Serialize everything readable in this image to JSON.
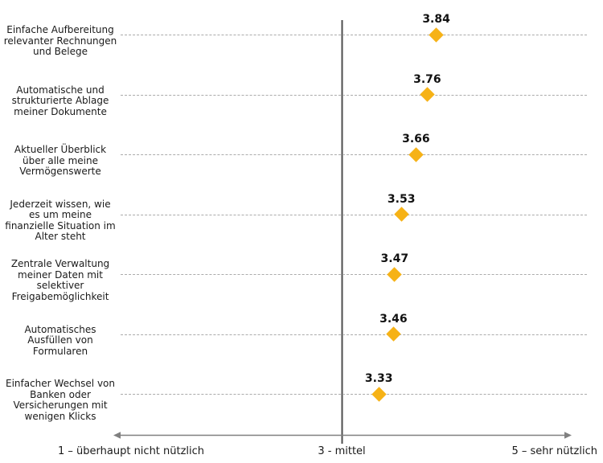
{
  "chart_data": {
    "type": "scatter",
    "subtype": "dot-plot-horizontal",
    "title": "",
    "categories": [
      "Einfache Aufbereitung\nrelevanter Rechnungen\nund Belege",
      "Automatische und\nstrukturierte Ablage\nmeiner Dokumente",
      "Aktueller Überblick\nüber alle meine\nVermögenswerte",
      "Jederzeit wissen, wie\nes um meine\nfinanzielle Situation im\nAlter steht",
      "Zentrale Verwaltung\nmeiner Daten mit\nselektiver\nFreigabemöglichkeit",
      "Automatisches\nAusfüllen von\nFormularen",
      "Einfacher Wechsel von\nBanken oder\nVersicherungen mit\nwenigen Klicks"
    ],
    "values": [
      3.84,
      3.76,
      3.66,
      3.53,
      3.47,
      3.46,
      3.33
    ],
    "value_labels": [
      "3.84",
      "3.76",
      "3.66",
      "3.53",
      "3.47",
      "3.46",
      "3.33"
    ],
    "xlim": [
      1,
      5
    ],
    "reference_line_x": 3,
    "x_axis_labels": [
      {
        "value": 1,
        "label": "1 – überhaupt nicht nützlich"
      },
      {
        "value": 3,
        "label": "3 - mittel"
      },
      {
        "value": 5,
        "label": "5 – sehr nützlich"
      }
    ],
    "grid": "dashed horizontal row lines",
    "legend": "none",
    "marker": {
      "shape": "diamond",
      "color": "#f6b216"
    },
    "colors": {
      "reference_line": "#4d4d4d",
      "axis_line": "#808080",
      "gridline": "#ababab",
      "text": "#1a1a1a",
      "value_text": "#111111",
      "background": "#ffffff"
    }
  }
}
